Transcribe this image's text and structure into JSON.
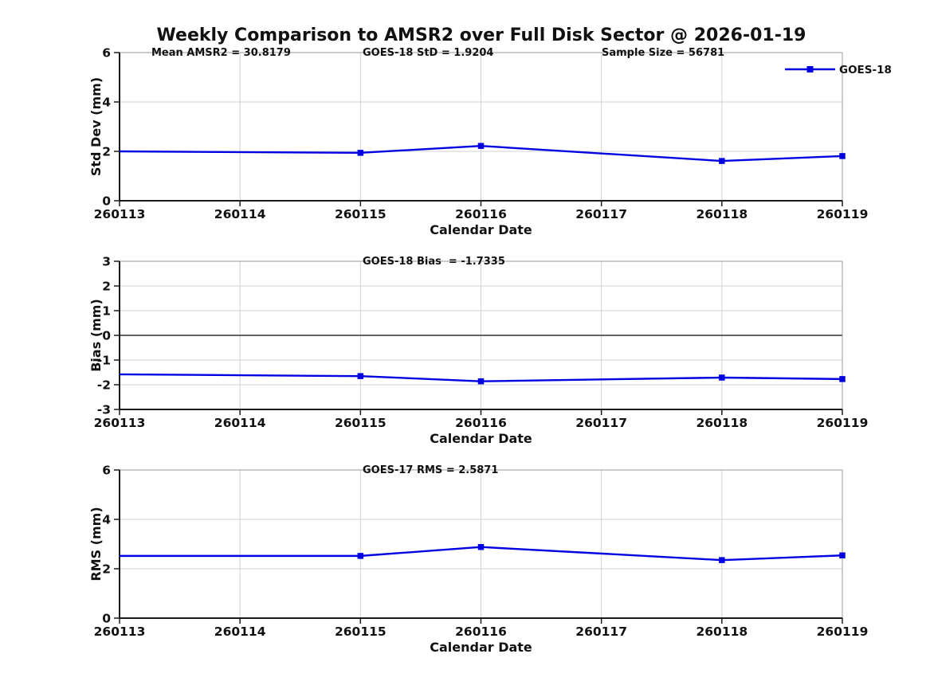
{
  "title": "Weekly Comparison to AMSR2 over Full Disk Sector @ 2026-01-19",
  "legend": {
    "label": "GOES-18"
  },
  "colors": {
    "series": "#0000e0",
    "grid": "#d2d2d2",
    "axis_dark": "#1a1a1a",
    "axis_light": "#9a9a9a",
    "zero_line": "#4d4d4d",
    "text": "#111111"
  },
  "chart_data": [
    {
      "type": "line",
      "ylabel": "Std Dev (mm)",
      "xlabel": "Calendar Date",
      "ylim": [
        0,
        6
      ],
      "yticks": [
        0,
        2,
        4,
        6
      ],
      "xlim": [
        260113,
        260119
      ],
      "x_ticks": [
        "260113",
        "260114",
        "260115",
        "260116",
        "260117",
        "260118",
        "260119"
      ],
      "grid": true,
      "zero_line": false,
      "show_legend": true,
      "legend_position": "top-right",
      "annotations": [
        {
          "text": "Mean AMSR2 = 30.8179"
        },
        {
          "text": "GOES-18 StD = 1.9204"
        },
        {
          "text": "Sample Size = 56781"
        }
      ],
      "series": [
        {
          "name": "GOES-18",
          "x": [
            260113,
            260115,
            260116,
            260118,
            260119
          ],
          "y": [
            2.0,
            1.94,
            2.22,
            1.61,
            1.81
          ],
          "marker_shown": [
            false,
            true,
            true,
            true,
            true
          ]
        }
      ]
    },
    {
      "type": "line",
      "ylabel": "Bias (mm)",
      "xlabel": "Calendar Date",
      "ylim": [
        -3,
        3
      ],
      "yticks": [
        -3,
        -2,
        -1,
        0,
        1,
        2,
        3
      ],
      "xlim": [
        260113,
        260119
      ],
      "x_ticks": [
        "260113",
        "260114",
        "260115",
        "260116",
        "260117",
        "260118",
        "260119"
      ],
      "grid": true,
      "zero_line": true,
      "show_legend": false,
      "annotations": [
        {
          "text": "GOES-18 Bias  = -1.7335"
        }
      ],
      "series": [
        {
          "name": "GOES-18",
          "x": [
            260113,
            260115,
            260116,
            260118,
            260119
          ],
          "y": [
            -1.58,
            -1.65,
            -1.86,
            -1.71,
            -1.77
          ],
          "marker_shown": [
            false,
            true,
            true,
            true,
            true
          ]
        }
      ]
    },
    {
      "type": "line",
      "ylabel": "RMS (mm)",
      "xlabel": "Calendar Date",
      "ylim": [
        0,
        6
      ],
      "yticks": [
        0,
        2,
        4,
        6
      ],
      "xlim": [
        260113,
        260119
      ],
      "x_ticks": [
        "260113",
        "260114",
        "260115",
        "260116",
        "260117",
        "260118",
        "260119"
      ],
      "grid": true,
      "zero_line": false,
      "show_legend": false,
      "annotations": [
        {
          "text": "GOES-17 RMS = 2.5871"
        }
      ],
      "series": [
        {
          "name": "GOES-18",
          "x": [
            260113,
            260115,
            260116,
            260118,
            260119
          ],
          "y": [
            2.52,
            2.52,
            2.88,
            2.35,
            2.54
          ],
          "marker_shown": [
            false,
            true,
            true,
            true,
            true
          ]
        }
      ]
    }
  ]
}
